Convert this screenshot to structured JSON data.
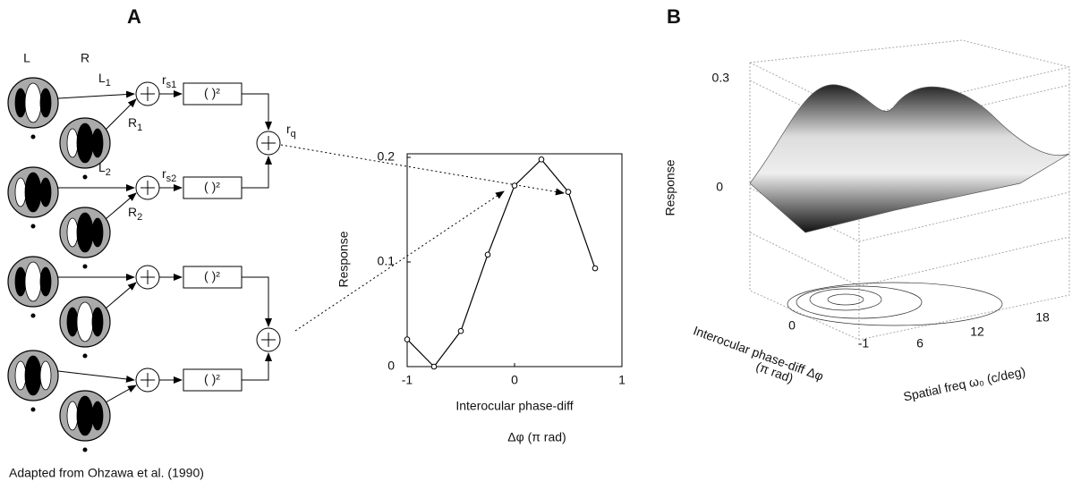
{
  "panel_a": {
    "label": "A",
    "left_eye": "L",
    "right_eye": "R",
    "square_box": "( )²",
    "inputs": [
      {
        "main": "L",
        "sub": "1"
      },
      {
        "main": "R",
        "sub": "1"
      },
      {
        "main": "L",
        "sub": "2"
      },
      {
        "main": "R",
        "sub": "2"
      }
    ],
    "simple_outputs": [
      {
        "main": "r",
        "sub": "s1"
      },
      {
        "main": "r",
        "sub": "s2"
      }
    ],
    "complex_output": {
      "main": "r",
      "sub": "q"
    },
    "credit": "Adapted from Ohzawa et al. (1990)"
  },
  "chart_data": {
    "type": "line",
    "y_label": "Response",
    "x_label": "Interocular phase-diff",
    "x_unit_label": "Δφ (π rad)",
    "x": [
      -1,
      -0.75,
      -0.5,
      -0.25,
      0,
      0.25,
      0.5,
      0.75
    ],
    "values": [
      0.026,
      0,
      0.034,
      0.107,
      0.173,
      0.198,
      0.167,
      0.094
    ],
    "color": "#000000",
    "xlim": [
      -1,
      1
    ],
    "ylim": [
      0,
      0.2
    ],
    "xticks": [
      -1,
      0,
      1
    ],
    "yticks": [
      0,
      0.1,
      0.2
    ],
    "grid": false
  },
  "panel_b": {
    "label": "B",
    "z_label": "Response",
    "z_ticks": [
      "0.3",
      "0"
    ],
    "phase_label": "Interocular phase-diff Δφ",
    "phase_unit": "(π rad)",
    "phase_ticks": [
      "0",
      "-1"
    ],
    "freq_label": "Spatial freq ω₀ (c/deg)",
    "freq_ticks": [
      "6",
      "12",
      "18"
    ]
  }
}
